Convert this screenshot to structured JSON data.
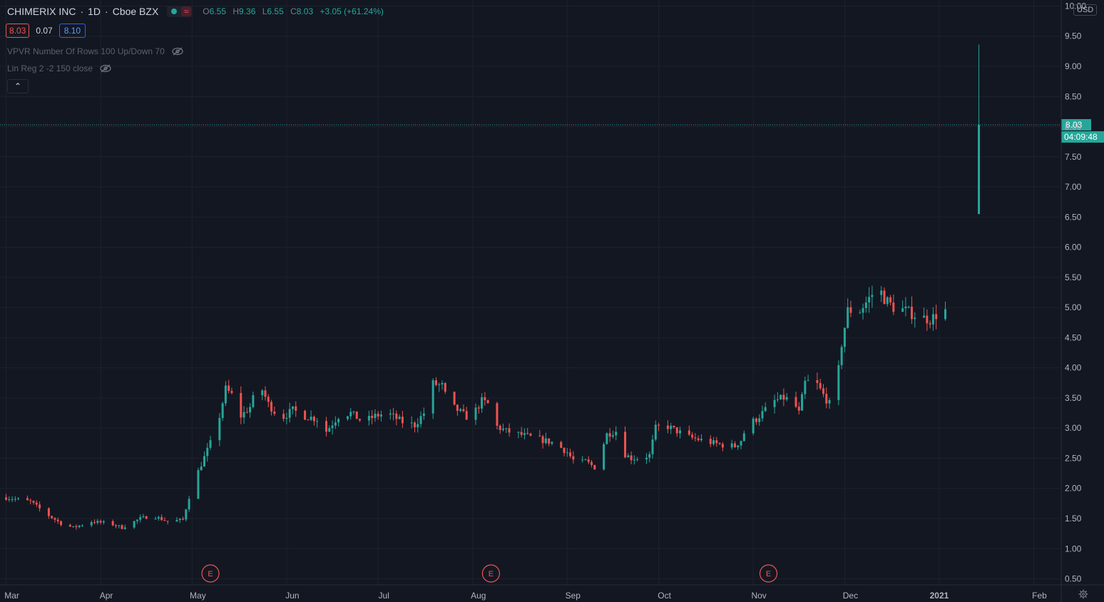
{
  "header": {
    "symbol": "CHIMERIX INC",
    "interval": "1D",
    "exchange": "Cboe BZX",
    "open_label": "O",
    "open": "6.55",
    "high_label": "H",
    "high": "9.36",
    "low_label": "L",
    "low": "6.55",
    "close_label": "C",
    "close": "8.03",
    "change": "+3.05 (+61.24%)",
    "wave_glyph": "≈"
  },
  "quote": {
    "bid": "8.03",
    "spread": "0.07",
    "ask": "8.10"
  },
  "indicators": [
    {
      "label": "VPVR Number Of Rows 100 Up/Down 70",
      "icon": "eye-crossed-icon"
    },
    {
      "label": "Lin Reg 2 -2 150 close",
      "icon": "eye-crossed-icon"
    }
  ],
  "collapse_glyph": "⌃",
  "currency": "USD",
  "colors": {
    "up": "#26a69a",
    "down": "#ef5350",
    "background": "#131722",
    "grid": "#1e222d",
    "axis_text": "#b2b5be"
  },
  "chart_data": {
    "type": "candlestick",
    "y_ticks": [
      "10.00",
      "9.50",
      "9.00",
      "8.50",
      "8.00",
      "7.50",
      "7.00",
      "6.50",
      "6.00",
      "5.50",
      "5.00",
      "4.50",
      "4.00",
      "3.50",
      "3.00",
      "2.50",
      "2.00",
      "1.50",
      "1.00",
      "0.50"
    ],
    "ylim": [
      0.4,
      10.1
    ],
    "x_ticks": [
      {
        "label": "Mar",
        "day": 0
      },
      {
        "label": "Apr",
        "day": 31
      },
      {
        "label": "May",
        "day": 61
      },
      {
        "label": "Jun",
        "day": 92
      },
      {
        "label": "Jul",
        "day": 122
      },
      {
        "label": "Aug",
        "day": 153
      },
      {
        "label": "Sep",
        "day": 184
      },
      {
        "label": "Oct",
        "day": 214
      },
      {
        "label": "Nov",
        "day": 245
      },
      {
        "label": "Dec",
        "day": 275
      },
      {
        "label": "2021",
        "day": 306
      },
      {
        "label": "Feb",
        "day": 337
      }
    ],
    "xlim": [
      -2,
      346
    ],
    "last_price": {
      "value": 8.03,
      "label": "8.03",
      "countdown": "04:09:48"
    },
    "earnings": [
      {
        "label": "E",
        "day": 67
      },
      {
        "label": "E",
        "day": 159
      },
      {
        "label": "E",
        "day": 250
      }
    ],
    "anchors": [
      [
        0,
        1.85
      ],
      [
        8,
        1.78
      ],
      [
        14,
        1.55
      ],
      [
        18,
        1.42
      ],
      [
        22,
        1.35
      ],
      [
        28,
        1.45
      ],
      [
        34,
        1.42
      ],
      [
        38,
        1.35
      ],
      [
        44,
        1.5
      ],
      [
        48,
        1.55
      ],
      [
        53,
        1.45
      ],
      [
        58,
        1.48
      ],
      [
        61,
        2.05
      ],
      [
        64,
        2.4
      ],
      [
        67,
        2.75
      ],
      [
        70,
        3.2
      ],
      [
        72,
        3.65
      ],
      [
        74,
        3.55
      ],
      [
        77,
        3.2
      ],
      [
        80,
        3.35
      ],
      [
        83,
        3.75
      ],
      [
        86,
        3.4
      ],
      [
        90,
        3.15
      ],
      [
        94,
        3.3
      ],
      [
        98,
        3.2
      ],
      [
        102,
        3.15
      ],
      [
        105,
        2.95
      ],
      [
        109,
        3.2
      ],
      [
        113,
        3.25
      ],
      [
        117,
        3.1
      ],
      [
        121,
        3.2
      ],
      [
        125,
        3.25
      ],
      [
        130,
        3.1
      ],
      [
        134,
        3.05
      ],
      [
        137,
        3.25
      ],
      [
        139,
        3.75
      ],
      [
        143,
        3.7
      ],
      [
        145,
        3.4
      ],
      [
        148,
        3.3
      ],
      [
        152,
        3.15
      ],
      [
        156,
        3.45
      ],
      [
        158,
        3.4
      ],
      [
        160,
        3.05
      ],
      [
        164,
        2.95
      ],
      [
        168,
        2.9
      ],
      [
        172,
        2.85
      ],
      [
        176,
        2.8
      ],
      [
        180,
        2.75
      ],
      [
        184,
        2.6
      ],
      [
        187,
        2.4
      ],
      [
        190,
        2.45
      ],
      [
        193,
        2.35
      ],
      [
        195,
        2.6
      ],
      [
        197,
        2.9
      ],
      [
        200,
        2.95
      ],
      [
        202,
        2.6
      ],
      [
        205,
        2.5
      ],
      [
        208,
        2.5
      ],
      [
        211,
        2.55
      ],
      [
        213,
        3.0
      ],
      [
        216,
        3.05
      ],
      [
        220,
        2.95
      ],
      [
        224,
        2.85
      ],
      [
        228,
        2.8
      ],
      [
        232,
        2.75
      ],
      [
        235,
        2.72
      ],
      [
        239,
        2.7
      ],
      [
        241,
        2.8
      ],
      [
        243,
        3.05
      ],
      [
        246,
        3.15
      ],
      [
        249,
        3.3
      ],
      [
        252,
        3.45
      ],
      [
        255,
        3.5
      ],
      [
        258,
        3.45
      ],
      [
        260,
        3.25
      ],
      [
        262,
        3.75
      ],
      [
        265,
        3.8
      ],
      [
        268,
        3.55
      ],
      [
        270,
        3.4
      ],
      [
        272,
        3.55
      ],
      [
        274,
        4.4
      ],
      [
        276,
        4.95
      ],
      [
        280,
        4.95
      ],
      [
        283,
        5.15
      ],
      [
        286,
        5.35
      ],
      [
        288,
        5.15
      ],
      [
        291,
        5.0
      ],
      [
        295,
        4.95
      ],
      [
        299,
        4.85
      ],
      [
        303,
        4.8
      ],
      [
        307,
        4.95
      ],
      [
        308,
        4.95
      ]
    ],
    "last_candle": {
      "day": 319,
      "open": 6.55,
      "high": 9.36,
      "low": 6.55,
      "close": 8.03
    }
  }
}
